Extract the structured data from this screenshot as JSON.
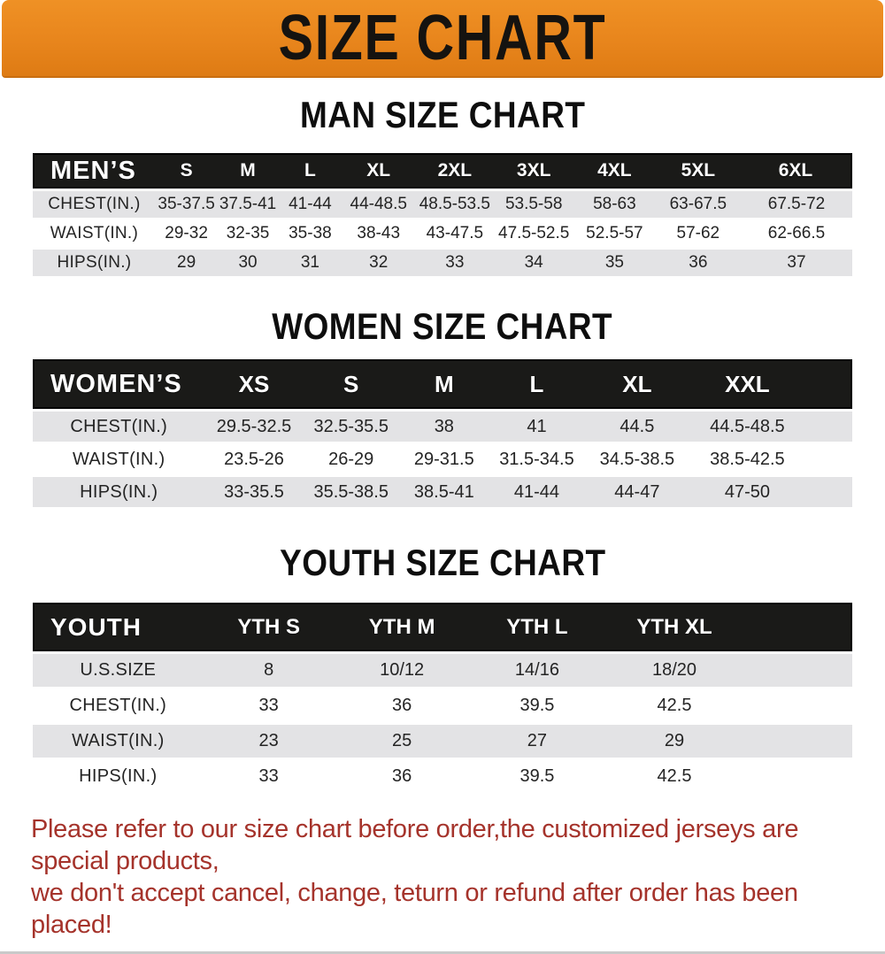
{
  "banner": {
    "title": "SIZE CHART",
    "bg_color": "#E8851C",
    "text_color": "#151310"
  },
  "colors": {
    "banner_bg": "#E8851C",
    "header_bar_bg": "#1A1A18",
    "row_gray": "#E3E3E5",
    "footer_red": "#A5332B"
  },
  "sections": [
    {
      "title": "MAN SIZE CHART",
      "header_label": "MEN’S",
      "columns": [
        "S",
        "M",
        "L",
        "XL",
        "2XL",
        "3XL",
        "4XL",
        "5XL",
        "6XL"
      ],
      "rows": [
        {
          "label": "CHEST(IN.)",
          "values": [
            "35-37.5",
            "37.5-41",
            "41-44",
            "44-48.5",
            "48.5-53.5",
            "53.5-58",
            "58-63",
            "63-67.5",
            "67.5-72"
          ]
        },
        {
          "label": "WAIST(IN.)",
          "values": [
            "29-32",
            "32-35",
            "35-38",
            "38-43",
            "43-47.5",
            "47.5-52.5",
            "52.5-57",
            "57-62",
            "62-66.5"
          ]
        },
        {
          "label": "HIPS(IN.)",
          "values": [
            "29",
            "30",
            "31",
            "32",
            "33",
            "34",
            "35",
            "36",
            "37"
          ]
        }
      ]
    },
    {
      "title": "WOMEN SIZE CHART",
      "header_label": "WOMEN’S",
      "columns": [
        "XS",
        "S",
        "M",
        "L",
        "XL",
        "XXL"
      ],
      "rows": [
        {
          "label": "CHEST(IN.)",
          "values": [
            "29.5-32.5",
            "32.5-35.5",
            "38",
            "41",
            "44.5",
            "44.5-48.5"
          ]
        },
        {
          "label": "WAIST(IN.)",
          "values": [
            "23.5-26",
            "26-29",
            "29-31.5",
            "31.5-34.5",
            "34.5-38.5",
            "38.5-42.5"
          ]
        },
        {
          "label": "HIPS(IN.)",
          "values": [
            "33-35.5",
            "35.5-38.5",
            "38.5-41",
            "41-44",
            "44-47",
            "47-50"
          ]
        }
      ]
    },
    {
      "title": "YOUTH SIZE CHART",
      "header_label": "YOUTH",
      "columns": [
        "YTH S",
        "YTH M",
        "YTH L",
        "YTH XL"
      ],
      "rows": [
        {
          "label": "U.S.SIZE",
          "values": [
            "8",
            "10/12",
            "14/16",
            "18/20"
          ]
        },
        {
          "label": "CHEST(IN.)",
          "values": [
            "33",
            "36",
            "39.5",
            "42.5"
          ]
        },
        {
          "label": "WAIST(IN.)",
          "values": [
            "23",
            "25",
            "27",
            "29"
          ]
        },
        {
          "label": "HIPS(IN.)",
          "values": [
            "33",
            "36",
            "39.5",
            "42.5"
          ]
        }
      ]
    }
  ],
  "footer": {
    "line1": "Please refer to our size chart before order,the customized jerseys are special products,",
    "line2": "we don't accept cancel, change, teturn or refund after order has been placed!"
  }
}
